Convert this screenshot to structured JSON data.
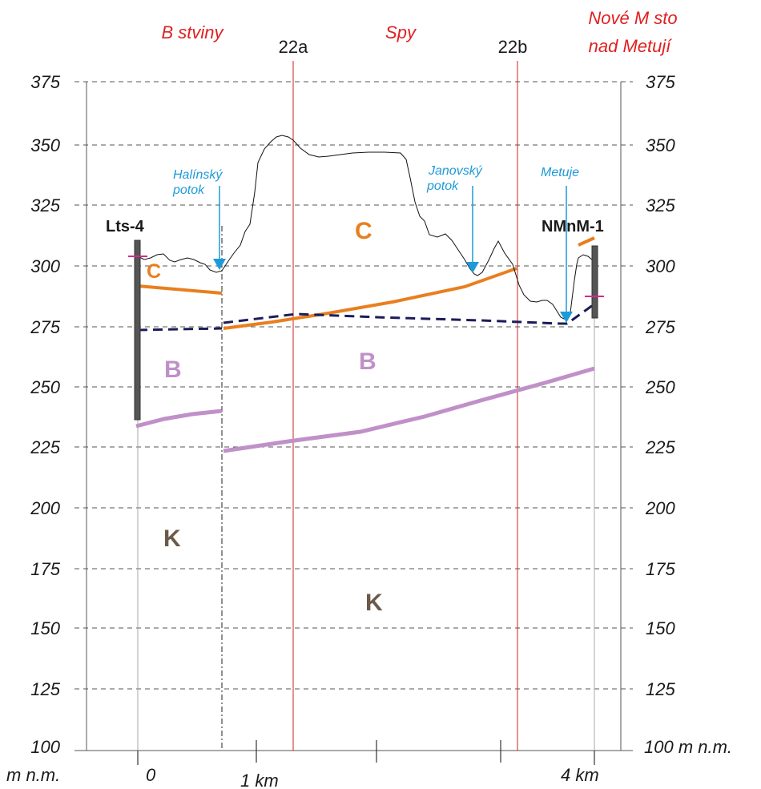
{
  "places": {
    "left": "B stviny",
    "middle": "Spy",
    "right_line1": "Nové M sto",
    "right_line2": "nad Metují"
  },
  "sections": {
    "a": "22a",
    "b": "22b"
  },
  "elevation_ticks": [
    "375",
    "350",
    "325",
    "300",
    "275",
    "250",
    "225",
    "200",
    "175",
    "150",
    "125",
    "100"
  ],
  "axis_unit_left_value": "100",
  "axis_unit_left": "m n.m.",
  "axis_unit_right": "100 m n.m.",
  "distance_labels": {
    "start": "0",
    "one": "1 km",
    "four": "4 km"
  },
  "wells": {
    "left": "Lts-4",
    "right": "NMnM-1"
  },
  "streams": {
    "halinsky_1": "Halínský",
    "halinsky_2": "potok",
    "janovsky_1": "Janovský",
    "janovsky_2": "potok",
    "metuje": "Metuje"
  },
  "units": {
    "c_small": "C",
    "c_large": "C",
    "b_left": "B",
    "b_center": "B",
    "k_left": "K",
    "k_center": "K"
  },
  "colors": {
    "place_red": "#e02020",
    "stream_blue": "#1e9ad8",
    "unit_c_orange": "#e87f1e",
    "unit_b_purple": "#c090c8",
    "unit_k_brown": "#6b5a4a",
    "water_table_navy": "#1c1c5a",
    "section_red": "#d62020"
  }
}
